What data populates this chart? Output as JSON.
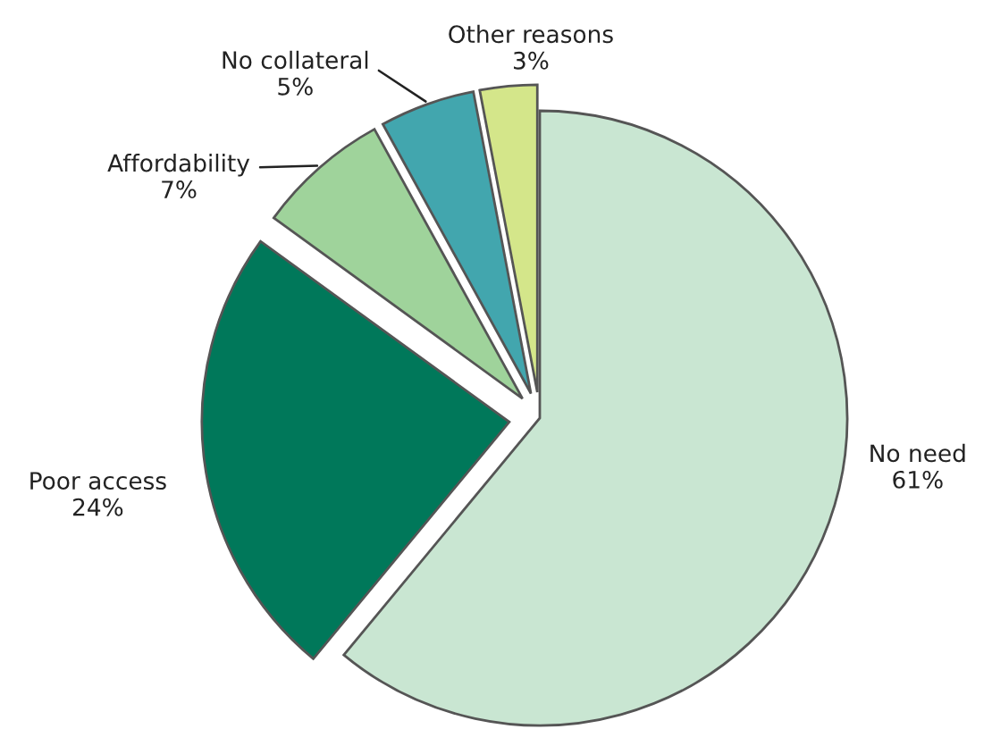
{
  "chart_data": {
    "type": "pie",
    "categories": [
      "No need",
      "Poor access",
      "Affordability",
      "No collateral",
      "Other reasons"
    ],
    "values": [
      61,
      24,
      7,
      5,
      3
    ],
    "colors": [
      "#c9e6d2",
      "#00785a",
      "#9fd39b",
      "#42a6ae",
      "#d4e68a"
    ],
    "value_labels": [
      "61%",
      "24%",
      "7%",
      "5%",
      "3%"
    ]
  }
}
